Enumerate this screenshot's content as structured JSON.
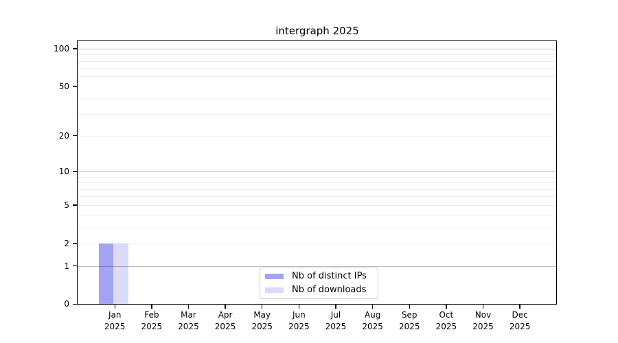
{
  "title": "intergraph 2025",
  "chart_data": {
    "type": "bar",
    "title": "intergraph 2025",
    "categories": [
      "Jan 2025",
      "Feb 2025",
      "Mar 2025",
      "Apr 2025",
      "May 2025",
      "Jun 2025",
      "Jul 2025",
      "Aug 2025",
      "Sep 2025",
      "Oct 2025",
      "Nov 2025",
      "Dec 2025"
    ],
    "months": [
      "Jan",
      "Feb",
      "Mar",
      "Apr",
      "May",
      "Jun",
      "Jul",
      "Aug",
      "Sep",
      "Oct",
      "Nov",
      "Dec"
    ],
    "x_year": "2025",
    "series": [
      {
        "name": "Nb of distinct IPs",
        "color": "#a4a4f4",
        "values": [
          2,
          0,
          0,
          0,
          0,
          0,
          0,
          0,
          0,
          0,
          0,
          0
        ]
      },
      {
        "name": "Nb of downloads",
        "color": "#dbdbf9",
        "values": [
          2,
          0,
          0,
          0,
          0,
          0,
          0,
          0,
          0,
          0,
          0,
          0
        ]
      }
    ],
    "yscale": "log10(value+1)",
    "ylim": [
      0,
      115
    ],
    "ytick_values": [
      0,
      1,
      2,
      5,
      10,
      20,
      50,
      100
    ],
    "ytick_labels": [
      "0",
      "1",
      "2",
      "5",
      "10",
      "20",
      "50",
      "100"
    ],
    "major_grid_values": [
      1,
      10,
      100
    ],
    "minor_grid_values": [
      2,
      3,
      4,
      5,
      6,
      7,
      8,
      9,
      20,
      30,
      40,
      60,
      70,
      80,
      90
    ],
    "grid": true,
    "legend_position": "lower center"
  },
  "legend": {
    "items": [
      {
        "label": "Nb of distinct IPs",
        "color": "#a4a4f4"
      },
      {
        "label": "Nb of downloads",
        "color": "#dbdbf9"
      }
    ]
  },
  "colors": {
    "background": "#ffffff",
    "spine": "#000000",
    "text": "#000000",
    "bar_distinct_ips": "#a4a4f4",
    "bar_downloads": "#dbdbf9",
    "legend_border": "#cbcbcb"
  }
}
